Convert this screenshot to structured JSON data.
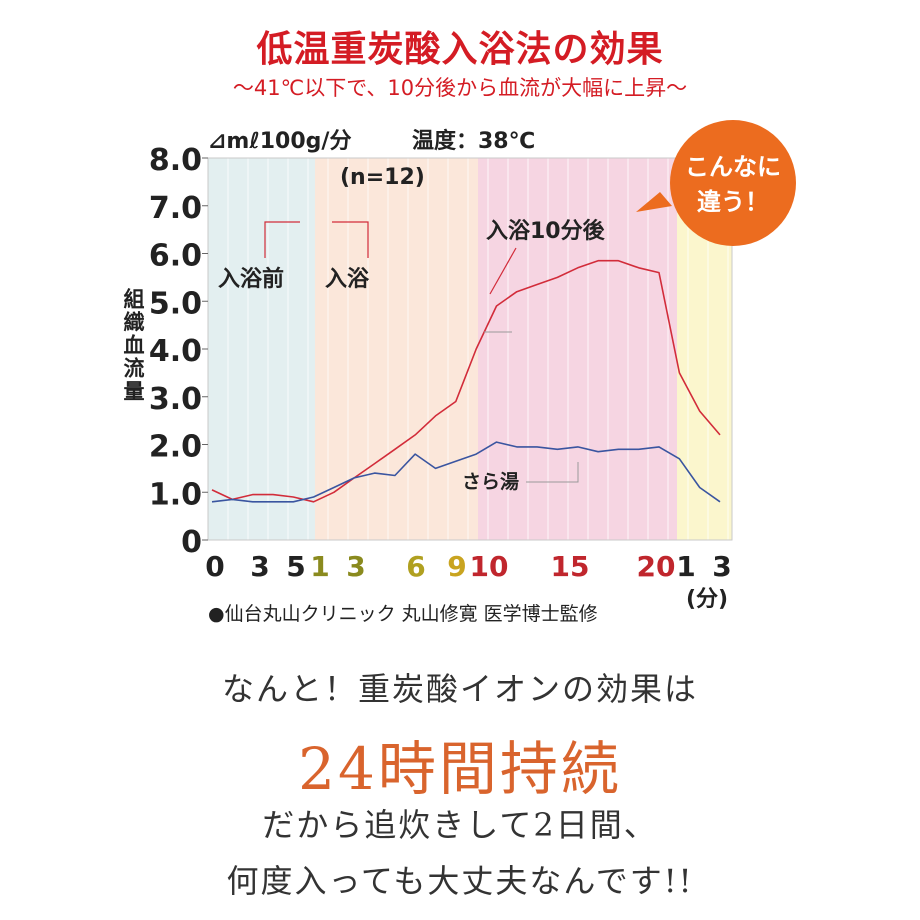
{
  "header": {
    "title": "低温重炭酸入浴法の効果",
    "subtitle": "～41℃以下で、10分後から血流が大幅に上昇～"
  },
  "chart_data": {
    "type": "line",
    "unit_label": "⊿mℓ100g/分",
    "temperature_label": "温度：38℃",
    "n_label": "(n=12)",
    "ylabel": "組織血流量",
    "x_unit_label": "(分)",
    "ylim": [
      0,
      8
    ],
    "y_ticks": [
      "0",
      "1.0",
      "2.0",
      "3.0",
      "4.0",
      "5.0",
      "6.0",
      "7.0",
      "8.0"
    ],
    "phases": [
      {
        "label": "入浴前",
        "color": "#e3eff0"
      },
      {
        "label": "入浴",
        "color": "#fbe7da"
      },
      {
        "label": "",
        "color": "#f6d5e2"
      },
      {
        "label": "",
        "color": "#fbf6cd"
      }
    ],
    "x_ticks": [
      {
        "label": "0",
        "color": "#222222"
      },
      {
        "label": "3",
        "color": "#222222"
      },
      {
        "label": "5",
        "color": "#222222"
      },
      {
        "label": "1",
        "color": "#8a8a1e"
      },
      {
        "label": "3",
        "color": "#8a8a1e"
      },
      {
        "label": "6",
        "color": "#b0a020"
      },
      {
        "label": "9",
        "color": "#c9a420"
      },
      {
        "label": "10",
        "color": "#c0262d"
      },
      {
        "label": "15",
        "color": "#c0262d"
      },
      {
        "label": "20",
        "color": "#c0262d"
      },
      {
        "label": "1",
        "color": "#222222"
      },
      {
        "label": "3",
        "color": "#222222"
      }
    ],
    "series": [
      {
        "name": "",
        "color": "#d22c3a",
        "values": [
          1.05,
          0.85,
          0.95,
          0.95,
          0.9,
          0.8,
          1.0,
          1.3,
          1.6,
          1.9,
          2.2,
          2.6,
          2.9,
          4.0,
          4.9,
          5.2,
          5.35,
          5.5,
          5.7,
          5.85,
          5.85,
          5.7,
          5.6,
          3.5,
          2.7,
          2.2
        ]
      },
      {
        "name": "さら湯",
        "color": "#3a55a0",
        "values": [
          0.8,
          0.85,
          0.8,
          0.8,
          0.8,
          0.9,
          1.1,
          1.3,
          1.4,
          1.35,
          1.8,
          1.5,
          1.65,
          1.8,
          2.05,
          1.95,
          1.95,
          1.9,
          1.95,
          1.85,
          1.9,
          1.9,
          1.95,
          1.7,
          1.1,
          0.8
        ]
      }
    ],
    "annotations": {
      "after_10min": "入浴10分後",
      "plain_bath": "さら湯",
      "callout": [
        "こんなに",
        "違う！"
      ]
    },
    "source": "●仙台丸山クリニック 丸山修寛 医学博士監修"
  },
  "body_text": {
    "line1": "なんと！重炭酸イオンの効果は",
    "highlight": "24時間持続",
    "line3": "だから追炊きして2日間、",
    "line4": "何度入っても大丈夫なんです!!"
  }
}
